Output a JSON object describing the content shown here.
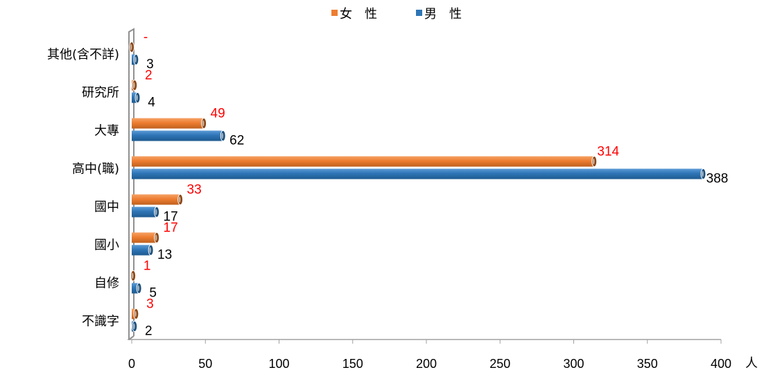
{
  "chart_data": {
    "type": "bar",
    "orientation": "horizontal",
    "categories": [
      "其他(含不詳)",
      "研究所",
      "大專",
      "高中(職)",
      "國中",
      "國小",
      "自修",
      "不識字"
    ],
    "series": [
      {
        "name": "女　性",
        "color": "#ED7D31",
        "label_color": "#FF0000",
        "values": [
          0,
          2,
          49,
          314,
          33,
          17,
          1,
          3
        ],
        "labels": [
          "-",
          "2",
          "49",
          "314",
          "33",
          "17",
          "1",
          "3"
        ]
      },
      {
        "name": "男　性",
        "color": "#2E75B6",
        "label_color": "#000000",
        "values": [
          3,
          4,
          62,
          388,
          17,
          13,
          5,
          2
        ],
        "labels": [
          "3",
          "4",
          "62",
          "388",
          "17",
          "13",
          "5",
          "2"
        ]
      }
    ],
    "xlim": [
      0,
      400
    ],
    "xticks": [
      0,
      50,
      100,
      150,
      200,
      250,
      300,
      350,
      400
    ],
    "xlabel": "人",
    "legend_position": "top",
    "grid": false
  }
}
